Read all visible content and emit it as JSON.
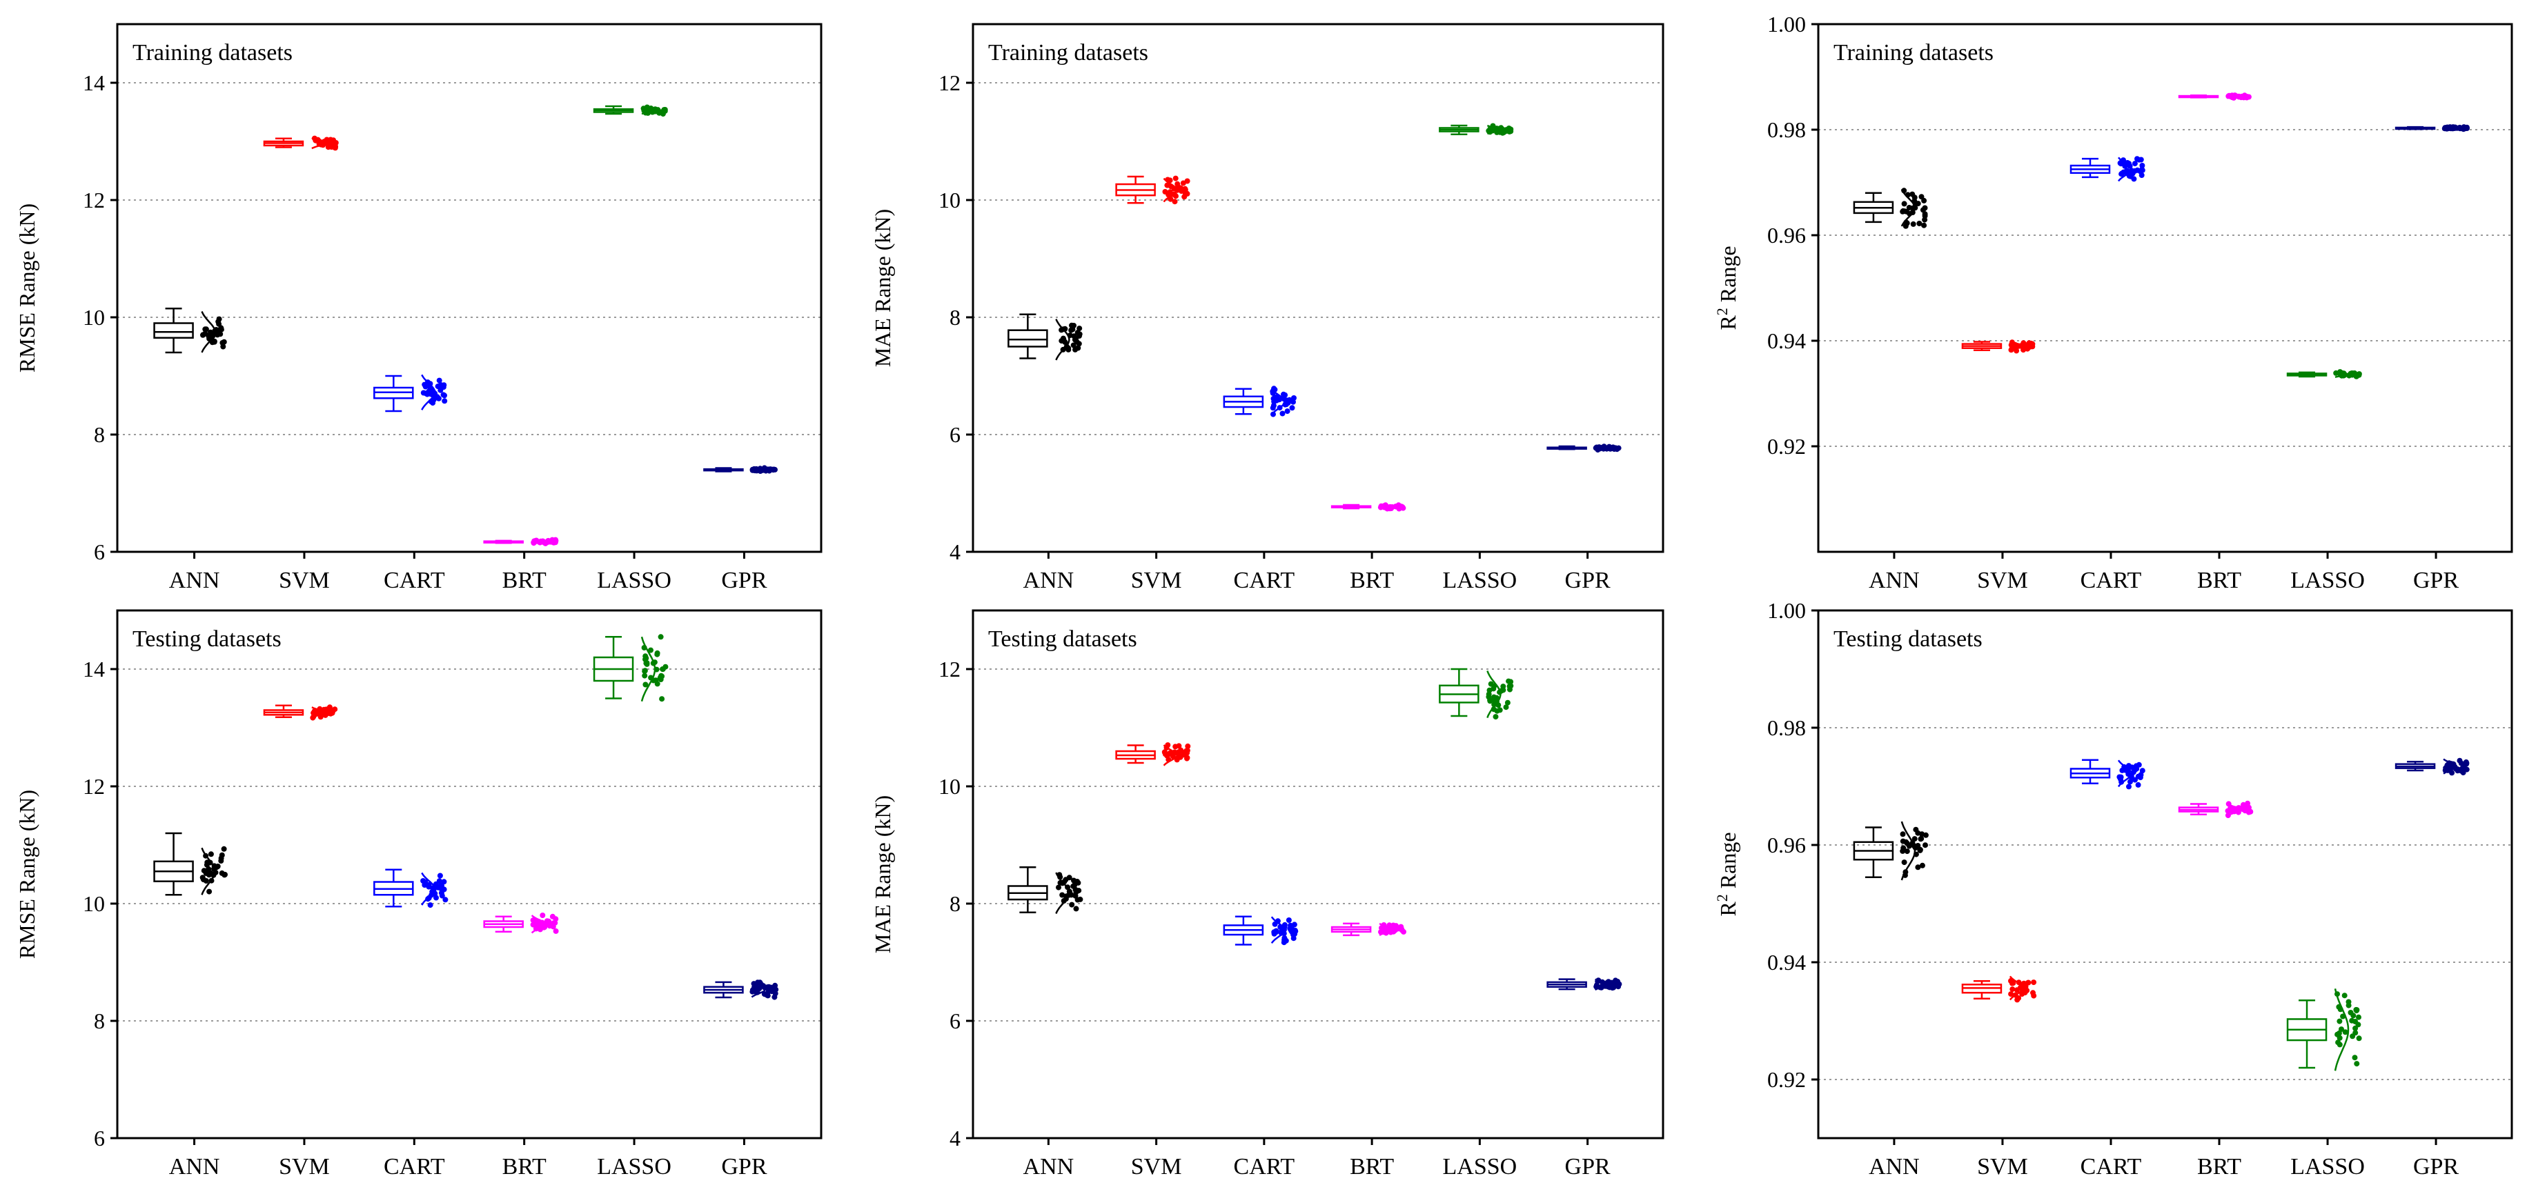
{
  "figure": {
    "categories": [
      "ANN",
      "SVM",
      "CART",
      "BRT",
      "LASSO",
      "GPR"
    ]
  },
  "chart_data": [
    {
      "type": "box",
      "panel_label": "Training datasets",
      "ylabel": "RMSE Range (kN)",
      "ylim": [
        6,
        15
      ],
      "yticks": [
        "6",
        "8",
        "10",
        "12",
        "14"
      ],
      "ytick_values": [
        6,
        8,
        10,
        12,
        14
      ],
      "categories": [
        "ANN",
        "SVM",
        "CART",
        "BRT",
        "LASSO",
        "GPR"
      ],
      "series": [
        {
          "name": "ANN",
          "color": "#000000",
          "min": 9.4,
          "q1": 9.65,
          "median": 9.75,
          "q3": 9.9,
          "max": 10.15,
          "spread": 0.7
        },
        {
          "name": "SVM",
          "color": "#ff0000",
          "min": 12.9,
          "q1": 12.93,
          "median": 12.97,
          "q3": 13.0,
          "max": 13.05,
          "spread": 0.18
        },
        {
          "name": "CART",
          "color": "#0000ff",
          "min": 8.4,
          "q1": 8.62,
          "median": 8.72,
          "q3": 8.8,
          "max": 9.0,
          "spread": 0.6
        },
        {
          "name": "BRT",
          "color": "#ff00ff",
          "min": 6.15,
          "q1": 6.16,
          "median": 6.17,
          "q3": 6.18,
          "max": 6.19,
          "spread": 0.07
        },
        {
          "name": "LASSO",
          "color": "#008000",
          "min": 13.47,
          "q1": 13.5,
          "median": 13.53,
          "q3": 13.55,
          "max": 13.6,
          "spread": 0.12
        },
        {
          "name": "GPR",
          "color": "#000080",
          "min": 7.37,
          "q1": 7.39,
          "median": 7.4,
          "q3": 7.41,
          "max": 7.43,
          "spread": 0.06
        }
      ]
    },
    {
      "type": "box",
      "panel_label": "Training datasets",
      "ylabel": "MAE Range (kN)",
      "ylim": [
        4,
        13
      ],
      "yticks": [
        "4",
        "6",
        "8",
        "10",
        "12"
      ],
      "ytick_values": [
        4,
        6,
        8,
        10,
        12
      ],
      "categories": [
        "ANN",
        "SVM",
        "CART",
        "BRT",
        "LASSO",
        "GPR"
      ],
      "series": [
        {
          "name": "ANN",
          "color": "#000000",
          "min": 7.3,
          "q1": 7.5,
          "median": 7.62,
          "q3": 7.78,
          "max": 8.05,
          "spread": 0.7
        },
        {
          "name": "SVM",
          "color": "#ff0000",
          "min": 9.95,
          "q1": 10.08,
          "median": 10.17,
          "q3": 10.27,
          "max": 10.4,
          "spread": 0.4
        },
        {
          "name": "CART",
          "color": "#0000ff",
          "min": 6.35,
          "q1": 6.47,
          "median": 6.56,
          "q3": 6.65,
          "max": 6.78,
          "spread": 0.45
        },
        {
          "name": "BRT",
          "color": "#ff00ff",
          "min": 4.74,
          "q1": 4.76,
          "median": 4.77,
          "q3": 4.78,
          "max": 4.8,
          "spread": 0.07
        },
        {
          "name": "LASSO",
          "color": "#008000",
          "min": 11.12,
          "q1": 11.17,
          "median": 11.2,
          "q3": 11.23,
          "max": 11.27,
          "spread": 0.14
        },
        {
          "name": "GPR",
          "color": "#000080",
          "min": 5.75,
          "q1": 5.76,
          "median": 5.77,
          "q3": 5.78,
          "max": 5.8,
          "spread": 0.06
        }
      ]
    },
    {
      "type": "box",
      "panel_label": "Training datasets",
      "ylabel": "Range",
      "ylabel_prefix": "R",
      "ylabel_sup": "2",
      "ylim": [
        0.9,
        1.0
      ],
      "yticks": [
        "0.92",
        "0.94",
        "0.96",
        "0.98",
        "1.00"
      ],
      "ytick_values": [
        0.92,
        0.94,
        0.96,
        0.98,
        1.0
      ],
      "categories": [
        "ANN",
        "SVM",
        "CART",
        "BRT",
        "LASSO",
        "GPR"
      ],
      "series": [
        {
          "name": "ANN",
          "color": "#000000",
          "min": 0.9625,
          "q1": 0.9642,
          "median": 0.9652,
          "q3": 0.9663,
          "max": 0.968,
          "spread": 0.007
        },
        {
          "name": "SVM",
          "color": "#ff0000",
          "min": 0.9382,
          "q1": 0.9386,
          "median": 0.939,
          "q3": 0.9394,
          "max": 0.9398,
          "spread": 0.0018
        },
        {
          "name": "CART",
          "color": "#0000ff",
          "min": 0.971,
          "q1": 0.9718,
          "median": 0.9725,
          "q3": 0.9732,
          "max": 0.9745,
          "spread": 0.0045
        },
        {
          "name": "BRT",
          "color": "#ff00ff",
          "min": 0.9861,
          "q1": 0.9862,
          "median": 0.9863,
          "q3": 0.9864,
          "max": 0.9865,
          "spread": 0.0006
        },
        {
          "name": "LASSO",
          "color": "#008000",
          "min": 0.9332,
          "q1": 0.9334,
          "median": 0.9336,
          "q3": 0.9338,
          "max": 0.934,
          "spread": 0.001
        },
        {
          "name": "GPR",
          "color": "#000080",
          "min": 0.9801,
          "q1": 0.9802,
          "median": 0.9803,
          "q3": 0.9804,
          "max": 0.9805,
          "spread": 0.0006
        }
      ]
    },
    {
      "type": "box",
      "panel_label": "Testing datasets",
      "ylabel": "RMSE Range (kN)",
      "ylim": [
        6,
        15
      ],
      "yticks": [
        "6",
        "8",
        "10",
        "12",
        "14"
      ],
      "ytick_values": [
        6,
        8,
        10,
        12,
        14
      ],
      "categories": [
        "ANN",
        "SVM",
        "CART",
        "BRT",
        "LASSO",
        "GPR"
      ],
      "series": [
        {
          "name": "ANN",
          "color": "#000000",
          "min": 10.15,
          "q1": 10.38,
          "median": 10.55,
          "q3": 10.72,
          "max": 11.2,
          "spread": 0.8
        },
        {
          "name": "SVM",
          "color": "#ff0000",
          "min": 13.18,
          "q1": 13.22,
          "median": 13.26,
          "q3": 13.3,
          "max": 13.38,
          "spread": 0.18
        },
        {
          "name": "CART",
          "color": "#0000ff",
          "min": 9.95,
          "q1": 10.15,
          "median": 10.25,
          "q3": 10.37,
          "max": 10.58,
          "spread": 0.55
        },
        {
          "name": "BRT",
          "color": "#ff00ff",
          "min": 9.52,
          "q1": 9.6,
          "median": 9.65,
          "q3": 9.7,
          "max": 9.78,
          "spread": 0.3
        },
        {
          "name": "LASSO",
          "color": "#008000",
          "min": 13.5,
          "q1": 13.8,
          "median": 14.0,
          "q3": 14.2,
          "max": 14.55,
          "spread": 1.1
        },
        {
          "name": "GPR",
          "color": "#000080",
          "min": 8.4,
          "q1": 8.48,
          "median": 8.53,
          "q3": 8.58,
          "max": 8.66,
          "spread": 0.25
        }
      ]
    },
    {
      "type": "box",
      "panel_label": "Testing datasets",
      "ylabel": "MAE Range (kN)",
      "ylim": [
        4,
        13
      ],
      "yticks": [
        "4",
        "6",
        "8",
        "10",
        "12"
      ],
      "ytick_values": [
        4,
        6,
        8,
        10,
        12
      ],
      "categories": [
        "ANN",
        "SVM",
        "CART",
        "BRT",
        "LASSO",
        "GPR"
      ],
      "series": [
        {
          "name": "ANN",
          "color": "#000000",
          "min": 7.85,
          "q1": 8.07,
          "median": 8.18,
          "q3": 8.3,
          "max": 8.62,
          "spread": 0.7
        },
        {
          "name": "SVM",
          "color": "#ff0000",
          "min": 10.4,
          "q1": 10.47,
          "median": 10.53,
          "q3": 10.6,
          "max": 10.7,
          "spread": 0.35
        },
        {
          "name": "CART",
          "color": "#0000ff",
          "min": 7.3,
          "q1": 7.47,
          "median": 7.55,
          "q3": 7.63,
          "max": 7.78,
          "spread": 0.45
        },
        {
          "name": "BRT",
          "color": "#ff00ff",
          "min": 7.46,
          "q1": 7.52,
          "median": 7.56,
          "q3": 7.6,
          "max": 7.66,
          "spread": 0.2
        },
        {
          "name": "LASSO",
          "color": "#008000",
          "min": 11.2,
          "q1": 11.43,
          "median": 11.57,
          "q3": 11.72,
          "max": 12.0,
          "spread": 0.8
        },
        {
          "name": "GPR",
          "color": "#000080",
          "min": 6.54,
          "q1": 6.58,
          "median": 6.62,
          "q3": 6.66,
          "max": 6.71,
          "spread": 0.18
        }
      ]
    },
    {
      "type": "box",
      "panel_label": "Testing datasets",
      "ylabel": "Range",
      "ylabel_prefix": "R",
      "ylabel_sup": "2",
      "ylim": [
        0.91,
        1.0
      ],
      "yticks": [
        "0.92",
        "0.94",
        "0.96",
        "0.98",
        "1.00"
      ],
      "ytick_values": [
        0.92,
        0.94,
        0.96,
        0.98,
        1.0
      ],
      "categories": [
        "ANN",
        "SVM",
        "CART",
        "BRT",
        "LASSO",
        "GPR"
      ],
      "series": [
        {
          "name": "ANN",
          "color": "#000000",
          "min": 0.9545,
          "q1": 0.9575,
          "median": 0.959,
          "q3": 0.9605,
          "max": 0.963,
          "spread": 0.01
        },
        {
          "name": "SVM",
          "color": "#ff0000",
          "min": 0.9338,
          "q1": 0.9348,
          "median": 0.9356,
          "q3": 0.9362,
          "max": 0.9368,
          "spread": 0.004
        },
        {
          "name": "CART",
          "color": "#0000ff",
          "min": 0.9705,
          "q1": 0.9715,
          "median": 0.9722,
          "q3": 0.973,
          "max": 0.9745,
          "spread": 0.0045
        },
        {
          "name": "BRT",
          "color": "#ff00ff",
          "min": 0.9652,
          "q1": 0.9657,
          "median": 0.966,
          "q3": 0.9664,
          "max": 0.967,
          "spread": 0.0022
        },
        {
          "name": "LASSO",
          "color": "#008000",
          "min": 0.922,
          "q1": 0.9267,
          "median": 0.9285,
          "q3": 0.9303,
          "max": 0.9335,
          "spread": 0.014
        },
        {
          "name": "GPR",
          "color": "#000080",
          "min": 0.9727,
          "q1": 0.9731,
          "median": 0.9734,
          "q3": 0.9738,
          "max": 0.9742,
          "spread": 0.0025
        }
      ]
    }
  ]
}
